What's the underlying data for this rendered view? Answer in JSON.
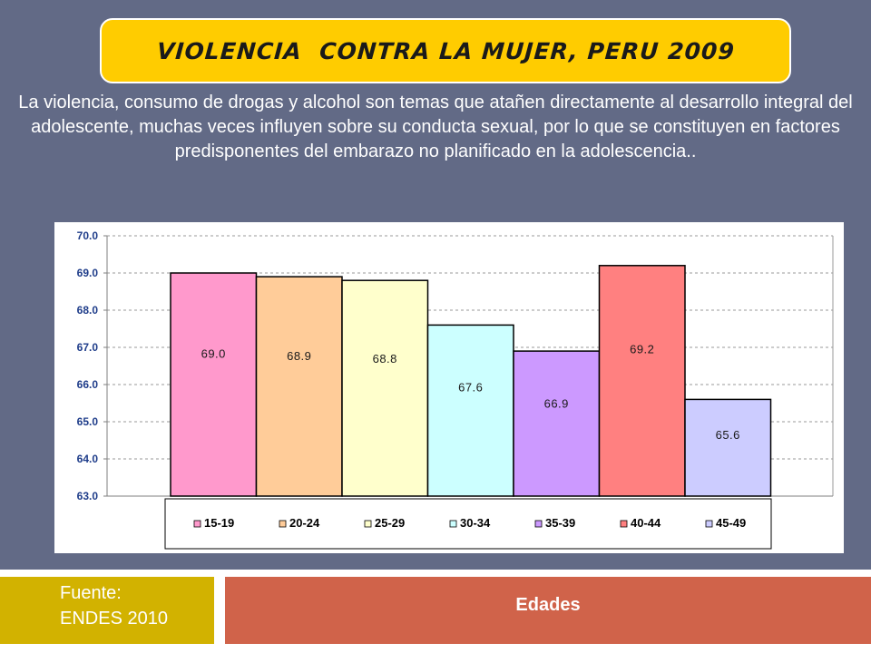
{
  "title": "VIOLENCIA  CONTRA LA MUJER, PERU 2009",
  "description": "La violencia, consumo de drogas y  alcohol  son temas que atañen directamente al desarrollo integral del  adolescente, muchas veces influyen sobre su conducta sexual, por lo que se constituyen  en factores predisponentes del embarazo no planificado en la adolescencia..",
  "source": {
    "label": "Fuente:",
    "value": "ENDES 2010"
  },
  "xlabel_box": "Edades",
  "colors": {
    "background": "#626a86",
    "title_box": "#ffcc00",
    "source_box": "#d2b200",
    "xlabel_box": "#d0634a"
  },
  "chart_data": {
    "type": "bar",
    "title": "",
    "xlabel": "",
    "ylabel": "",
    "ylim": [
      63.0,
      70.0
    ],
    "yticks": [
      "70.0",
      "69.0",
      "68.0",
      "67.0",
      "66.0",
      "65.0",
      "64.0",
      "63.0"
    ],
    "grid": true,
    "legend_position": "bottom",
    "series": [
      {
        "name": "15-19",
        "value": 69.0,
        "label": "69.0",
        "color": "#ff99cc"
      },
      {
        "name": "20-24",
        "value": 68.9,
        "label": "68.9",
        "color": "#ffcc99"
      },
      {
        "name": "25-29",
        "value": 68.8,
        "label": "68.8",
        "color": "#ffffcc"
      },
      {
        "name": "30-34",
        "value": 67.6,
        "label": "67.6",
        "color": "#ccffff"
      },
      {
        "name": "35-39",
        "value": 66.9,
        "label": "66.9",
        "color": "#cc99ff"
      },
      {
        "name": "40-44",
        "value": 69.2,
        "label": "69.2",
        "color": "#ff8080"
      },
      {
        "name": "45-49",
        "value": 65.6,
        "label": "65.6",
        "color": "#ccccff"
      }
    ]
  }
}
